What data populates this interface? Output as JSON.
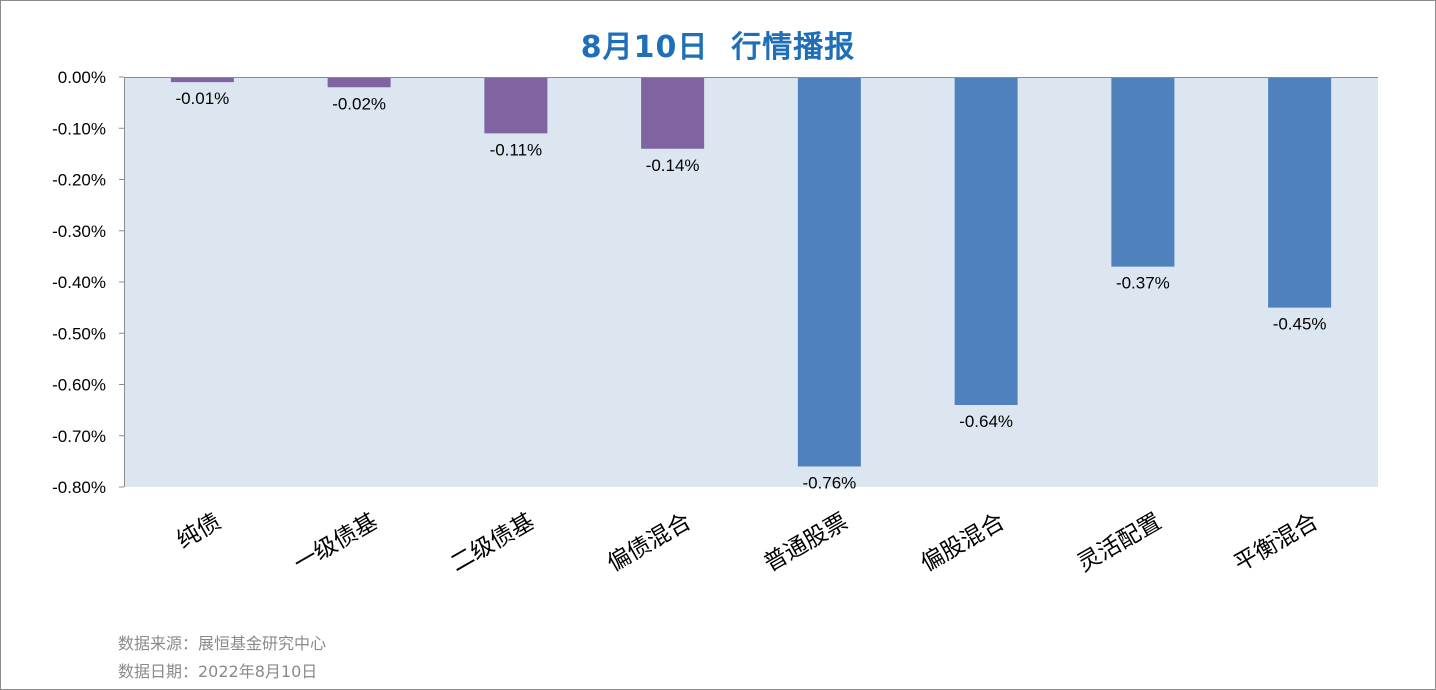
{
  "chart_data": {
    "type": "bar",
    "title": "8月10日  行情播报",
    "categories": [
      "纯债",
      "一级债基",
      "二级债基",
      "偏债混合",
      "普通股票",
      "偏股混合",
      "灵活配置",
      "平衡混合"
    ],
    "values": [
      -0.01,
      -0.02,
      -0.11,
      -0.14,
      -0.76,
      -0.64,
      -0.37,
      -0.45
    ],
    "data_labels": [
      "-0.01%",
      "-0.02%",
      "-0.11%",
      "-0.14%",
      "-0.76%",
      "-0.64%",
      "-0.37%",
      "-0.45%"
    ],
    "y_ticks": [
      "0.00%",
      "-0.10%",
      "-0.20%",
      "-0.30%",
      "-0.40%",
      "-0.50%",
      "-0.60%",
      "-0.70%",
      "-0.80%"
    ],
    "ylim": [
      -0.8,
      0
    ],
    "unit": "%",
    "xlabel": "",
    "ylabel": "",
    "grid": false,
    "legend": "none",
    "colors": {
      "bond_bar": "#8064a2",
      "equity_bar": "#4f81bd",
      "plot_background": "#dce6f1",
      "title": "#1f6fb8"
    },
    "bar_color_keys": [
      "bond_bar",
      "bond_bar",
      "bond_bar",
      "bond_bar",
      "equity_bar",
      "equity_bar",
      "equity_bar",
      "equity_bar"
    ]
  },
  "footer": {
    "source": "数据来源：展恒基金研究中心",
    "date": "数据日期：2022年8月10日"
  }
}
